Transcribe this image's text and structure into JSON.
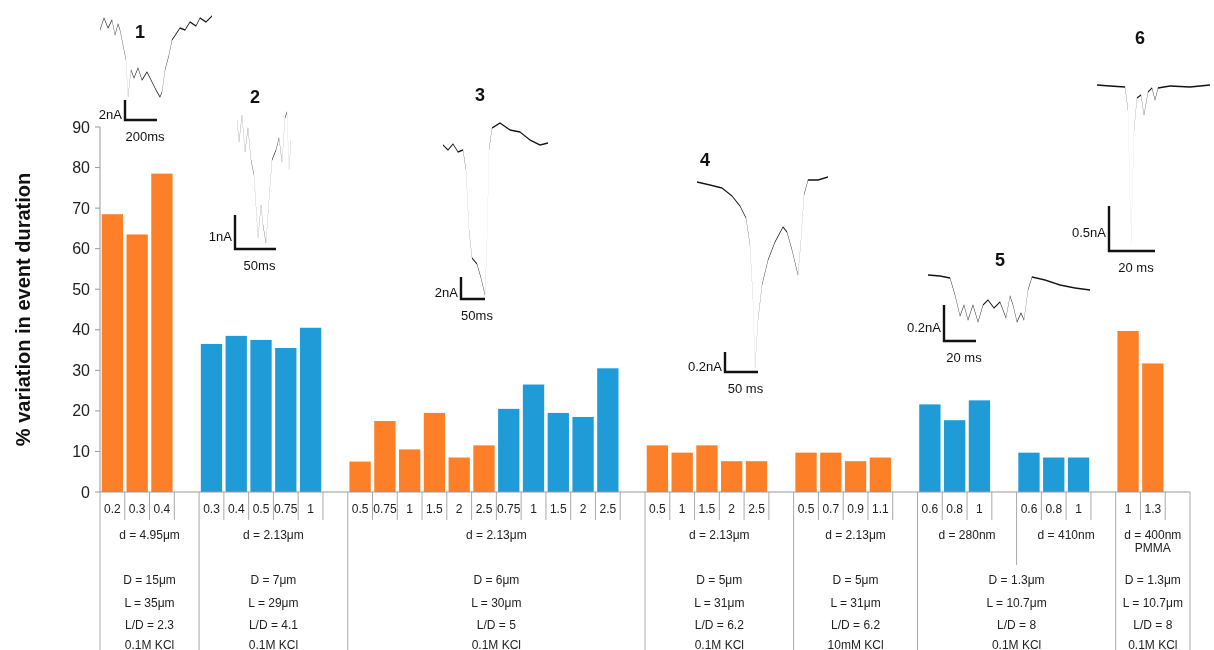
{
  "chart_data": {
    "type": "bar",
    "ylabel": "% variation in event duration",
    "categories": [
      "0.2",
      "0.3",
      "0.4",
      null,
      "0.3",
      "0.4",
      "0.5",
      "0.75",
      "1",
      null,
      "0.5",
      "0.75",
      "1",
      "1.5",
      "2",
      "2.5",
      "0.75",
      "1",
      "1.5",
      "2",
      "2.5",
      null,
      "0.5",
      "1",
      "1.5",
      "2",
      "2.5",
      null,
      "0.5",
      "0.7",
      "0.9",
      "1.1",
      null,
      "0.6",
      "0.8",
      "1",
      null,
      "0.6",
      "0.8",
      "1",
      null,
      "1",
      "1.3",
      null
    ],
    "values": [
      68.5,
      63.5,
      78.5,
      null,
      36.5,
      38.5,
      37.5,
      35.5,
      40.5,
      null,
      7.5,
      17.5,
      10.5,
      19.5,
      8.5,
      11.5,
      20.5,
      26.5,
      19.5,
      18.5,
      30.5,
      null,
      11.5,
      9.7,
      11.5,
      7.6,
      7.6,
      null,
      9.7,
      9.7,
      7.6,
      8.5,
      null,
      21.6,
      17.7,
      22.6,
      null,
      9.7,
      8.5,
      8.5,
      null,
      39.7,
      31.7,
      null
    ],
    "colors": [
      "#fd7f28",
      "#fd7f28",
      "#fd7f28",
      null,
      "#1f9bd7",
      "#1f9bd7",
      "#1f9bd7",
      "#1f9bd7",
      "#1f9bd7",
      null,
      "#fd7f28",
      "#fd7f28",
      "#fd7f28",
      "#fd7f28",
      "#fd7f28",
      "#fd7f28",
      "#1f9bd7",
      "#1f9bd7",
      "#1f9bd7",
      "#1f9bd7",
      "#1f9bd7",
      null,
      "#fd7f28",
      "#fd7f28",
      "#fd7f28",
      "#fd7f28",
      "#fd7f28",
      null,
      "#fd7f28",
      "#fd7f28",
      "#fd7f28",
      "#fd7f28",
      null,
      "#1f9bd7",
      "#1f9bd7",
      "#1f9bd7",
      null,
      "#1f9bd7",
      "#1f9bd7",
      "#1f9bd7",
      null,
      "#fd7f28",
      "#fd7f28",
      null
    ],
    "ylim": [
      0,
      90
    ],
    "yticks": [
      0,
      10,
      20,
      30,
      40,
      50,
      60,
      70,
      80,
      90
    ],
    "annotations": [
      "d = 4.95μm",
      "d = 2.13μm",
      "d = 2.13μm",
      "d = 2.13μm",
      "d = 2.13μm",
      "d = 280nm",
      "d = 410nm",
      "d = 400nm PMMA",
      "D = 15μm",
      "D = 7μm",
      "D = 6μm",
      "D = 5μm",
      "D = 5μm",
      "D = 1.3μm",
      "D = 1.3μm",
      "L = 35μm",
      "L = 29μm",
      "L = 30μm",
      "L = 31μm",
      "L = 31μm",
      "L = 10.7μm",
      "L = 10.7μm",
      "L/D = 2.3",
      "L/D = 4.1",
      "L/D = 5",
      "L/D = 6.2",
      "L/D = 6.2",
      "L/D = 8",
      "L/D = 8",
      "0.1M KCl",
      "0.1M KCl",
      "0.1M KCl",
      "0.1M KCl",
      "10mM KCl",
      "0.1M KCl",
      "0.1M KCl",
      "1",
      "2nA",
      "200ms",
      "2",
      "1nA",
      "50ms",
      "3",
      "2nA",
      "50ms",
      "4",
      "0.2nA",
      "50 ms",
      "5",
      "0.2nA",
      "20 ms",
      "6",
      "0.5nA",
      "20 ms"
    ]
  }
}
